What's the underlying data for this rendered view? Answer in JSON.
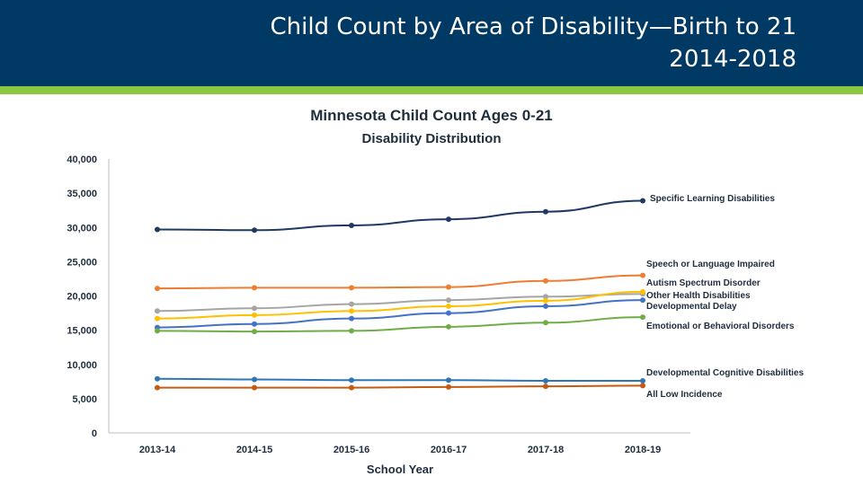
{
  "slide": {
    "title_line1": "Child Count by Area of Disability—Birth to 21",
    "title_line2": "2014-2018"
  },
  "colors": {
    "header_bg": "#003a64",
    "accent_bar": "#8dc63f"
  },
  "chart_data": {
    "type": "line",
    "title": "Minnesota Child Count Ages 0-21",
    "subtitle": "Disability Distribution",
    "xlabel": "School Year",
    "ylabel": "",
    "categories": [
      "2013-14",
      "2014-15",
      "2015-16",
      "2016-17",
      "2017-18",
      "2018-19"
    ],
    "ylim": [
      0,
      40000
    ],
    "yticks": [
      0,
      5000,
      10000,
      15000,
      20000,
      25000,
      30000,
      35000,
      40000
    ],
    "ytick_labels": [
      "0",
      "5,000",
      "10,000",
      "15,000",
      "20,000",
      "25,000",
      "30,000",
      "35,000",
      "40,000"
    ],
    "grid": false,
    "legend": "right, labels at line ends",
    "series": [
      {
        "name": "Specific Learning Disabilities",
        "color": "#1f3864",
        "values": [
          29700,
          29600,
          30300,
          31200,
          32300,
          33900
        ]
      },
      {
        "name": "Speech or Language Impaired",
        "color": "#ed7d31",
        "values": [
          21100,
          21200,
          21200,
          21300,
          22200,
          23000
        ]
      },
      {
        "name": "Autism Spectrum Disorder",
        "color": "#a5a5a5",
        "values": [
          17800,
          18200,
          18800,
          19400,
          19900,
          20300
        ]
      },
      {
        "name": "Other Health Disabilities",
        "color": "#ffc000",
        "values": [
          16700,
          17200,
          17800,
          18500,
          19300,
          20600
        ]
      },
      {
        "name": "Developmental Delay",
        "color": "#4472c4",
        "values": [
          15400,
          15900,
          16700,
          17500,
          18500,
          19400
        ]
      },
      {
        "name": "Emotional or Behavioral Disorders",
        "color": "#70ad47",
        "values": [
          14900,
          14800,
          14900,
          15500,
          16100,
          16900
        ]
      },
      {
        "name": "Developmental Cognitive Disabilities",
        "color": "#2e75b6",
        "values": [
          7900,
          7800,
          7700,
          7700,
          7600,
          7600
        ]
      },
      {
        "name": "All Low Incidence",
        "color": "#c55a11",
        "values": [
          6600,
          6600,
          6600,
          6700,
          6800,
          6900
        ]
      }
    ]
  }
}
